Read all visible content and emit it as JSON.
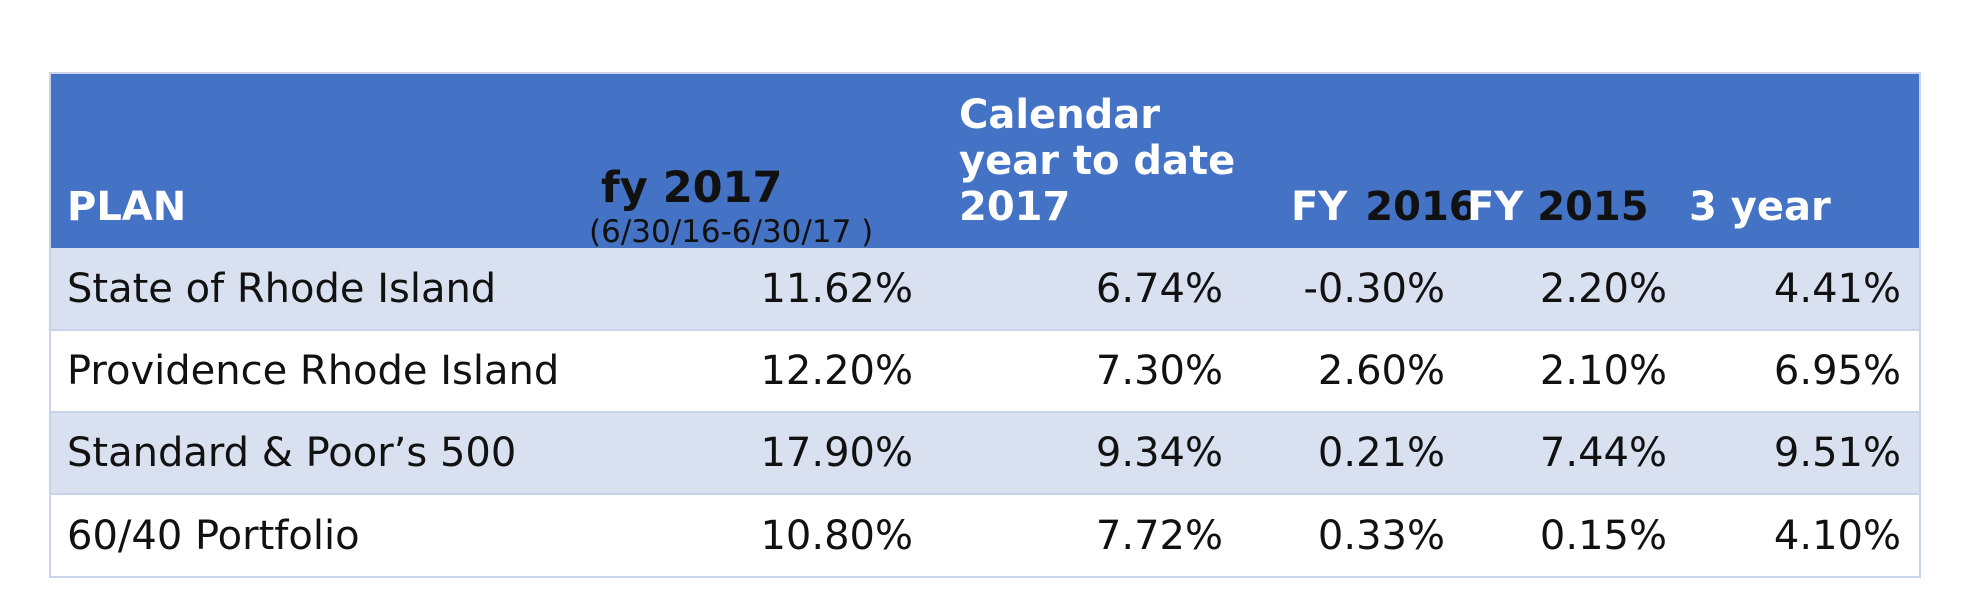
{
  "table": {
    "headers": {
      "plan": "PLAN",
      "fy2017_main": "fy 2017",
      "fy2017_sub": "(6/30/16-6/30/17 )",
      "calendar_line1": "Calendar",
      "calendar_line2": "year to date",
      "calendar_line3": "2017",
      "fy2016_prefix": "FY",
      "fy2016_year": "2016",
      "fy2015_prefix": "FY",
      "fy2015_year": "2015",
      "three_year": "3 year"
    },
    "rows": [
      {
        "plan": "State of Rhode Island",
        "fy2017": "11.62%",
        "calendar": "6.74%",
        "fy2016": "-0.30%",
        "fy2015": "2.20%",
        "three_year": "4.41%"
      },
      {
        "plan": "Providence Rhode Island",
        "fy2017": "12.20%",
        "calendar": "7.30%",
        "fy2016": "2.60%",
        "fy2015": "2.10%",
        "three_year": "6.95%"
      },
      {
        "plan": "Standard & Poor’s 500",
        "fy2017": "17.90%",
        "calendar": "9.34%",
        "fy2016": "0.21%",
        "fy2015": "7.44%",
        "three_year": "9.51%"
      },
      {
        "plan": "60/40 Portfolio",
        "fy2017": "10.80%",
        "calendar": "7.72%",
        "fy2016": "0.33%",
        "fy2015": "0.15%",
        "three_year": "4.10%"
      }
    ]
  },
  "colors": {
    "header_bg": "#4472c4",
    "band_bg": "#d9e0f0",
    "border": "#c9d3ea"
  }
}
